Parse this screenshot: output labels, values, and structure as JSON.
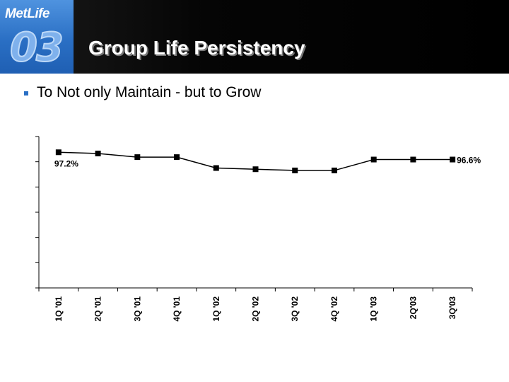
{
  "header": {
    "logo_text": "MetLife",
    "year_badge": "03",
    "title": "Group Life Persistency"
  },
  "bullets": [
    {
      "text": "To Not only Maintain - but to Grow"
    }
  ],
  "colors": {
    "logo_blue": "#2a6fc4",
    "header_black": "#000000",
    "line": "#000000"
  },
  "chart_data": {
    "type": "line",
    "categories": [
      "1Q '01",
      "2Q '01",
      "3Q '01",
      "4Q '01",
      "1Q '02",
      "2Q '02",
      "3Q '02",
      "4Q '02",
      "1Q '03",
      "2Q'03",
      "3Q'03"
    ],
    "series": [
      {
        "values": [
          97.2,
          97.1,
          96.8,
          96.8,
          95.9,
          95.8,
          95.7,
          95.7,
          96.6,
          96.6,
          96.6
        ]
      }
    ],
    "data_labels": [
      {
        "index": 0,
        "text": "97.2%"
      },
      {
        "index": 10,
        "text": "96.6%"
      }
    ],
    "ylim": [
      86,
      98.5
    ],
    "y_ticks": 6,
    "grid": false,
    "legend": "none",
    "xlabel": "",
    "ylabel": ""
  }
}
